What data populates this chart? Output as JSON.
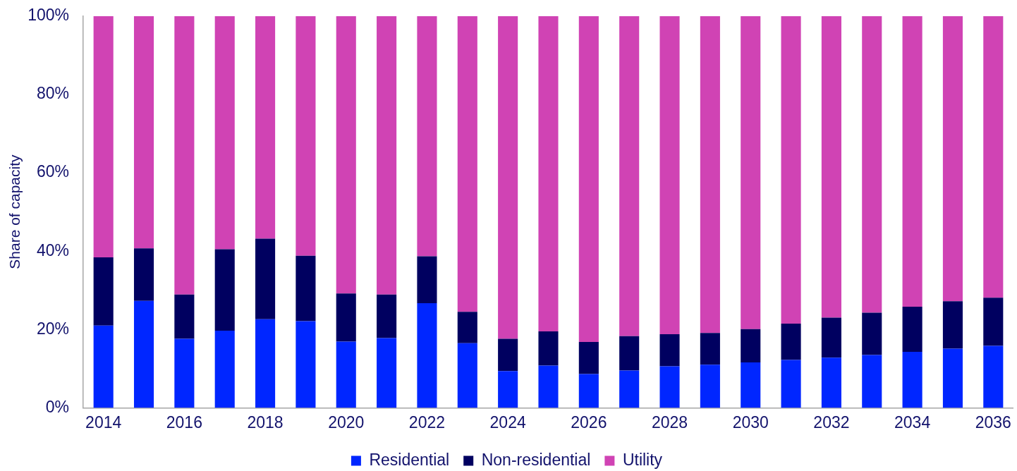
{
  "chart_data": {
    "type": "bar",
    "stacked": true,
    "ylabel": "Share of capacity",
    "categories": [
      "2014",
      null,
      "2016",
      null,
      "2018",
      null,
      "2020",
      null,
      "2022",
      null,
      "2024",
      null,
      "2026",
      null,
      "2028",
      null,
      "2030",
      null,
      "2032",
      null,
      "2034",
      null,
      "2036"
    ],
    "series": [
      {
        "name": "Residential",
        "color": "#0026ff",
        "values": [
          21.0,
          27.3,
          17.6,
          19.7,
          22.6,
          22.1,
          16.9,
          17.8,
          26.7,
          16.5,
          9.4,
          10.8,
          8.6,
          9.5,
          10.6,
          11.0,
          11.6,
          12.2,
          12.8,
          13.5,
          14.3,
          15.1,
          15.8
        ]
      },
      {
        "name": "Non-residential",
        "color": "#000060",
        "values": [
          17.4,
          13.4,
          11.3,
          20.8,
          20.6,
          16.7,
          12.3,
          11.1,
          12.0,
          8.0,
          8.2,
          8.7,
          8.2,
          8.8,
          8.2,
          8.1,
          8.5,
          9.3,
          10.2,
          10.8,
          11.5,
          12.1,
          12.3
        ]
      },
      {
        "name": "Utility",
        "color": "#d043b4",
        "values": [
          61.6,
          59.3,
          71.1,
          59.5,
          56.8,
          61.2,
          70.8,
          71.1,
          61.3,
          75.5,
          82.4,
          80.5,
          83.2,
          81.7,
          81.2,
          80.9,
          79.9,
          78.5,
          77.0,
          75.7,
          74.2,
          72.8,
          71.9
        ]
      }
    ],
    "ylim": [
      0,
      100
    ],
    "yticks": [
      {
        "value": 0,
        "label": "0%"
      },
      {
        "value": 20,
        "label": "20%"
      },
      {
        "value": 40,
        "label": "40%"
      },
      {
        "value": 60,
        "label": "60%"
      },
      {
        "value": 80,
        "label": "80%"
      },
      {
        "value": 100,
        "label": "100%"
      }
    ],
    "legend": "bottom"
  }
}
